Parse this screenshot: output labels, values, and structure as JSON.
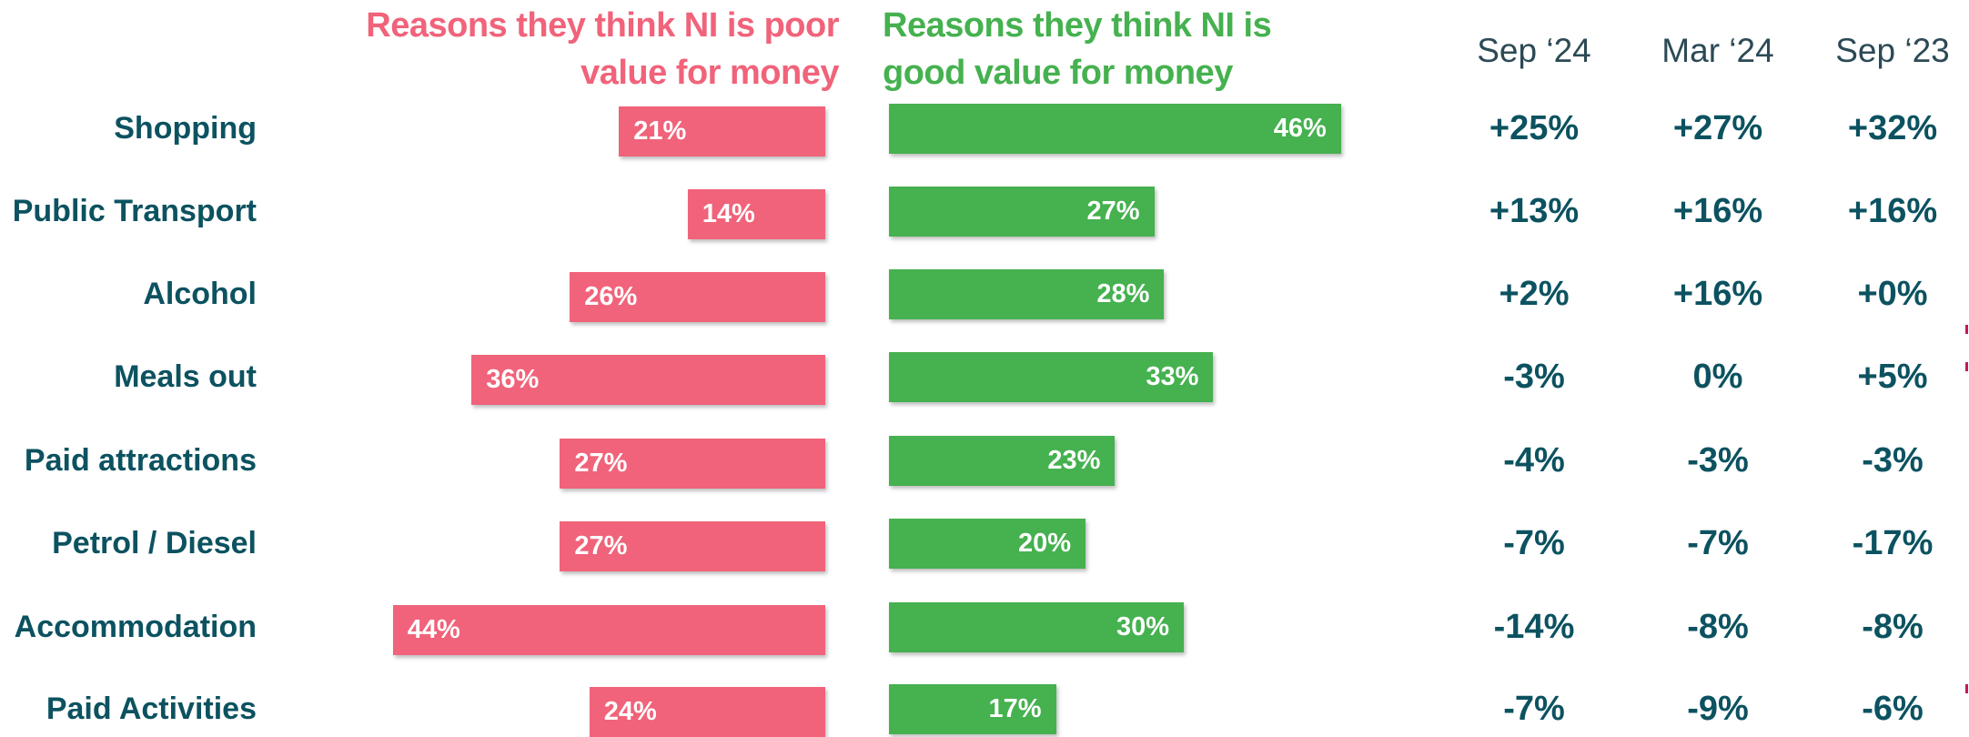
{
  "header": {
    "poor_title_line1": "Reasons they think NI is poor",
    "poor_title_line2": "value for money",
    "good_title_line1": "Reasons they think NI is",
    "good_title_line2": "good value for money"
  },
  "periods": [
    "Sep ‘24",
    "Mar ‘24",
    "Sep ‘23"
  ],
  "colors": {
    "poor": "#f0637a",
    "good": "#45b14f",
    "text_dark": "#0c5260"
  },
  "chart_data": {
    "type": "bar",
    "orientation": "horizontal-diverging",
    "categories": [
      "Shopping",
      "Public Transport",
      "Alcohol",
      "Meals out",
      "Paid attractions",
      "Petrol / Diesel",
      "Accommodation",
      "Paid Activities"
    ],
    "series": [
      {
        "name": "Reasons they think NI is poor value for money",
        "values": [
          21,
          14,
          26,
          36,
          27,
          27,
          44,
          24
        ],
        "labels": [
          "21%",
          "14%",
          "26%",
          "36%",
          "27%",
          "27%",
          "44%",
          "24%"
        ]
      },
      {
        "name": "Reasons they think NI is good value for money",
        "values": [
          46,
          27,
          28,
          33,
          23,
          20,
          30,
          17
        ],
        "labels": [
          "46%",
          "27%",
          "28%",
          "33%",
          "23%",
          "20%",
          "30%",
          "17%"
        ]
      }
    ],
    "net_change": {
      "columns": [
        "Sep ‘24",
        "Mar ‘24",
        "Sep ‘23"
      ],
      "rows": [
        [
          "+25%",
          "+27%",
          "+32%"
        ],
        [
          "+13%",
          "+16%",
          "+16%"
        ],
        [
          "+2%",
          "+16%",
          "+0%"
        ],
        [
          "-3%",
          "0%",
          "+5%"
        ],
        [
          "-4%",
          "-3%",
          "-3%"
        ],
        [
          "-7%",
          "-7%",
          "-17%"
        ],
        [
          "-14%",
          "-8%",
          "-8%"
        ],
        [
          "-7%",
          "-9%",
          "-6%"
        ]
      ]
    },
    "unit": "%"
  }
}
